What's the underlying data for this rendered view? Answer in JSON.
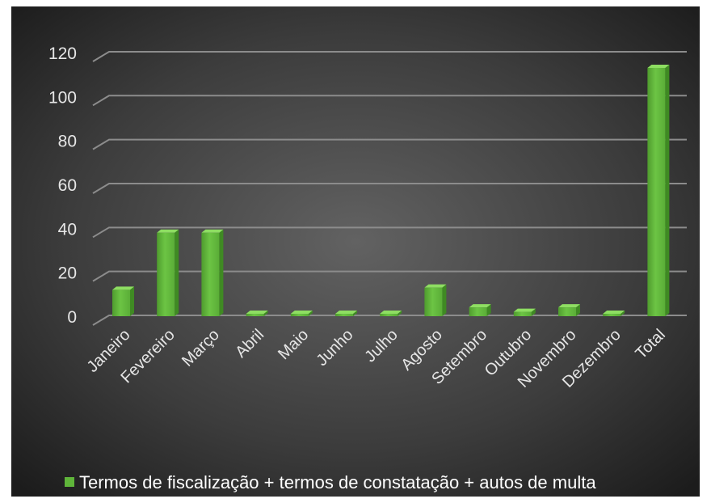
{
  "chart_data": {
    "type": "bar",
    "style": "3d-column",
    "categories": [
      "Janeiro",
      "Fevereiro",
      "Março",
      "Abril",
      "Maio",
      "Junho",
      "Julho",
      "Agosto",
      "Setembro",
      "Outubro",
      "Novembro",
      "Dezembro",
      "Total"
    ],
    "series": [
      {
        "name": "Termos de fiscalização + termos de constatação + autos de multa",
        "values": [
          12,
          38,
          38,
          0,
          0,
          0,
          1,
          13,
          4,
          2,
          4,
          0,
          113
        ],
        "color": "#5fb53a"
      }
    ],
    "yticks": [
      "0",
      "20",
      "40",
      "60",
      "80",
      "100",
      "120"
    ],
    "ylim": [
      0,
      120
    ],
    "grid": true,
    "legend_position": "bottom",
    "colors": {
      "background_center": "#606060",
      "background_edge": "#1e1e1e",
      "gridline": "#8c8c8c",
      "text": "#e6e6e6",
      "bar": "#5fb53a"
    }
  }
}
